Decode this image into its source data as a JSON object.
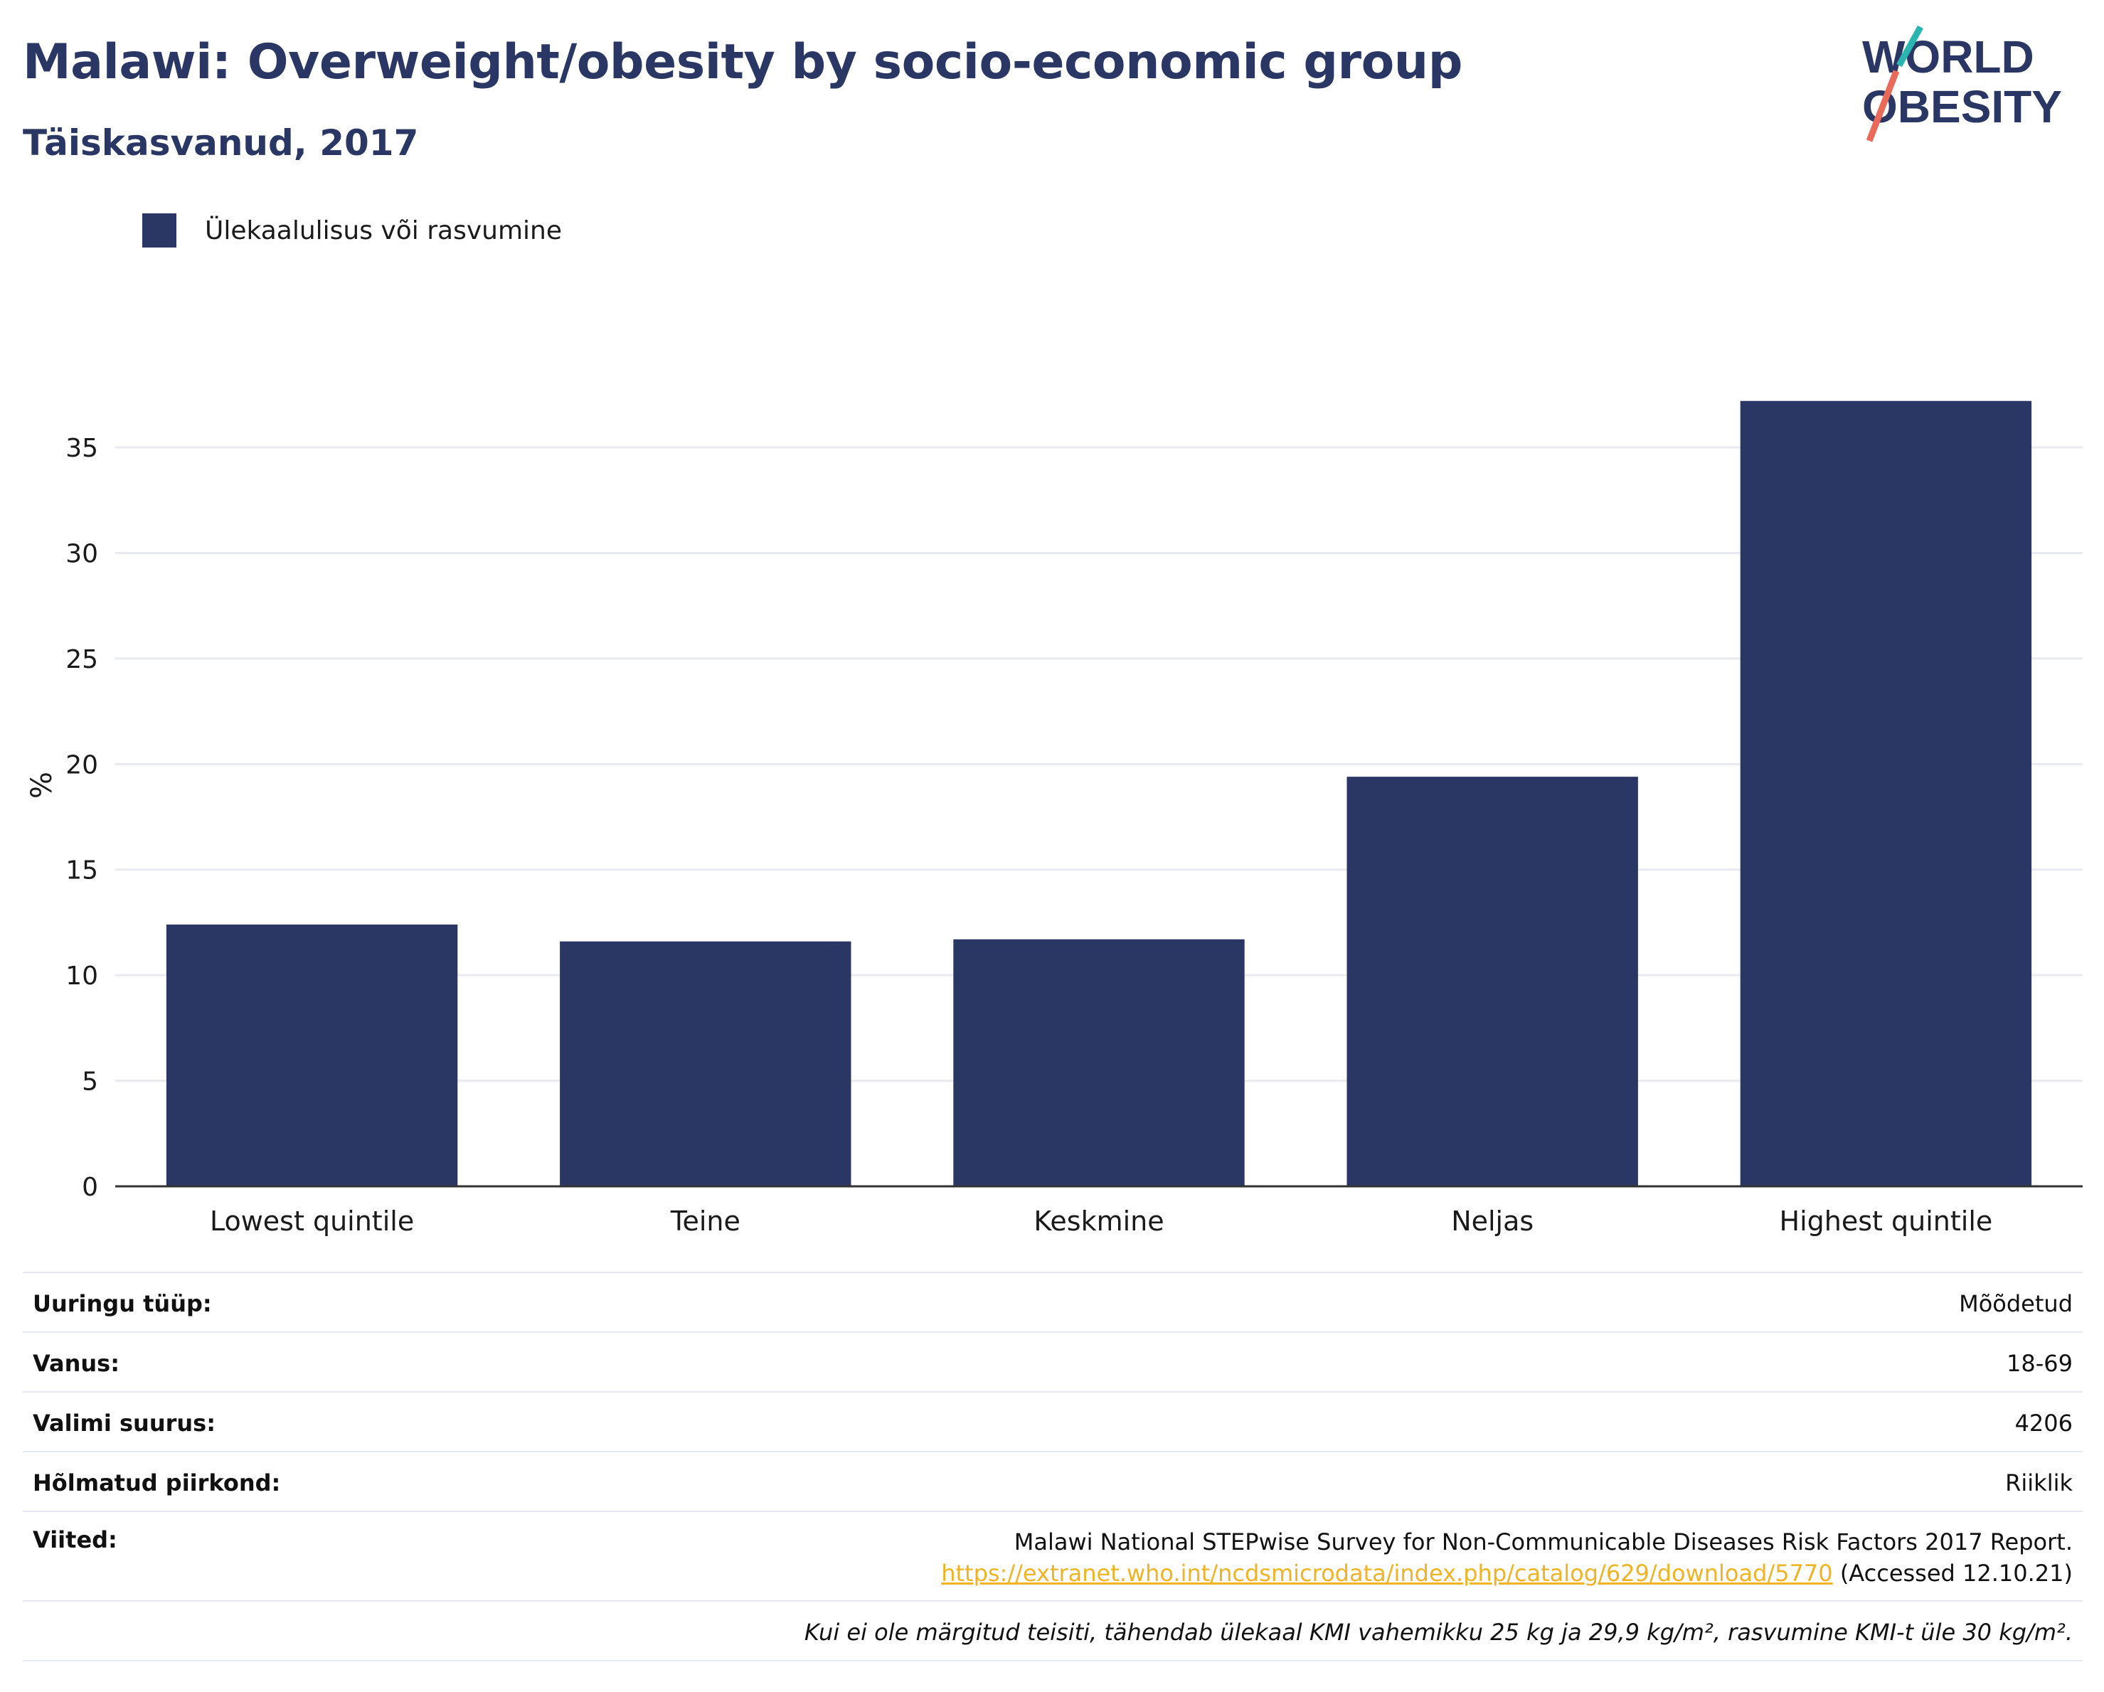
{
  "header": {
    "title": "Malawi: Overweight/obesity by socio-economic group",
    "subtitle": "Täiskasvanud, 2017"
  },
  "logo": {
    "line1": "WORLD",
    "line2": "OBESITY",
    "accent_teal": "#2bb5b0",
    "accent_coral": "#ea6a5a"
  },
  "legend": {
    "label": "Ülekaalulisus või rasvumine",
    "color": "#2a3663"
  },
  "chart_data": {
    "type": "bar",
    "categories": [
      "Lowest quintile",
      "Teine",
      "Keskmine",
      "Neljas",
      "Highest quintile"
    ],
    "series": [
      {
        "name": "Ülekaalulisus või rasvumine",
        "values": [
          12.4,
          11.6,
          11.7,
          19.4,
          37.2
        ]
      }
    ],
    "ylabel": "%",
    "ylim": [
      0,
      38
    ],
    "yticks": [
      0,
      5,
      10,
      15,
      20,
      25,
      30,
      35
    ],
    "grid": true,
    "legend_position": "top-left",
    "bar_color": "#2a3663"
  },
  "info": {
    "survey_type_label": "Uuringu tüüp:",
    "survey_type_value": "Mõõdetud",
    "age_label": "Vanus:",
    "age_value": "18-69",
    "sample_label": "Valimi suurus:",
    "sample_value": "4206",
    "area_label": "Hõlmatud piirkond:",
    "area_value": "Riiklik",
    "refs_label": "Viited:",
    "refs_text": "Malawi National STEPwise Survey for Non-Communicable Diseases Risk Factors 2017 Report.",
    "refs_link": "https://extranet.who.int/ncdsmicrodata/index.php/catalog/629/download/5770",
    "refs_accessed": " (Accessed 12.10.21)",
    "footnote": "Kui ei ole märgitud teisiti, tähendab ülekaal KMI vahemikku 25 kg ja 29,9 kg/m², rasvumine KMI-t üle 30 kg/m²."
  }
}
